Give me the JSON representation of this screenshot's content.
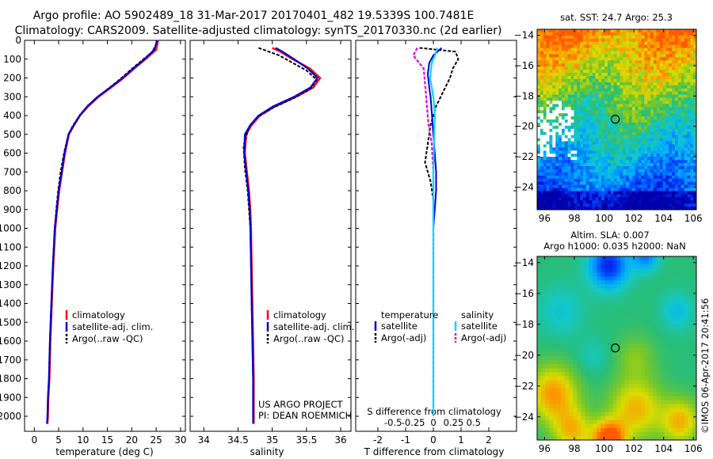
{
  "header": {
    "line1": "Argo profile: AO 5902489_18 31-Mar-2017 20170401_482 19.5339S 100.7481E",
    "line2": "Climatology: CARS2009. Satellite-adjusted climatology: synTS_20170330.nc (2d earlier)"
  },
  "legend": {
    "climatology": "climatology",
    "satellite_adj": "satellite-adj. clim.",
    "argo_raw": "Argo(..raw -QC)",
    "temperature_head": "temperature",
    "salinity_head": "salinity",
    "satellite": "satellite",
    "argo_adj": "Argo(-adj)"
  },
  "credits": {
    "project": "US ARGO PROJECT",
    "pi": "PI: DEAN ROEMMICH",
    "stamp": "©IMOS 06-Apr-2017 20:41:56"
  },
  "colors": {
    "climatology": "#ff0000",
    "satellite": "#0000cc",
    "argo": "#000000",
    "sat_salinity": "#00d8ff",
    "argo_salinity": "#e000e0"
  },
  "chart_data": [
    {
      "type": "line",
      "id": "temperature",
      "xlabel": "temperature (deg C)",
      "ylabel": "",
      "xlim": [
        -2,
        31
      ],
      "ylim": [
        2080,
        0
      ],
      "xticks": [
        0,
        5,
        10,
        15,
        20,
        25,
        30
      ],
      "yticks": [
        0,
        100,
        200,
        300,
        400,
        500,
        600,
        700,
        800,
        900,
        1000,
        1100,
        1200,
        1300,
        1400,
        1500,
        1600,
        1700,
        1800,
        1900,
        2000
      ],
      "series": [
        {
          "name": "climatology",
          "x": [
            25.4,
            25.0,
            22.8,
            20.5,
            18.3,
            15.8,
            13.2,
            11.1,
            9.4,
            8.2,
            7.1,
            6.3,
            5.7,
            5.1,
            4.7,
            4.3,
            3.9,
            3.6,
            3.3,
            3.1,
            2.9,
            2.8,
            2.7
          ],
          "y": [
            0,
            50,
            100,
            150,
            200,
            250,
            300,
            350,
            400,
            450,
            500,
            600,
            700,
            800,
            900,
            1000,
            1200,
            1400,
            1600,
            1800,
            1900,
            2000,
            2040
          ]
        },
        {
          "name": "satellite-adj. clim.",
          "x": [
            25.2,
            24.6,
            22.6,
            20.3,
            18.1,
            15.6,
            13.0,
            10.9,
            9.3,
            8.1,
            7.0,
            6.2,
            5.6,
            5.0,
            4.6,
            4.2,
            3.8,
            3.5,
            3.2,
            3.0,
            2.8,
            2.7,
            2.6
          ],
          "y": [
            0,
            50,
            100,
            150,
            200,
            250,
            300,
            350,
            400,
            450,
            500,
            600,
            700,
            800,
            900,
            1000,
            1200,
            1400,
            1600,
            1800,
            1900,
            2000,
            2040
          ]
        },
        {
          "name": "Argo(..raw -QC)",
          "x": [
            24.6,
            24.3,
            22.4,
            20.1,
            17.9,
            15.5,
            13.0,
            10.9,
            9.3,
            8.0,
            7.0,
            6.1,
            5.4,
            4.9,
            4.5,
            4.2,
            3.8,
            3.5,
            3.2,
            3.0,
            2.8,
            2.7
          ],
          "y": [
            40,
            60,
            100,
            150,
            200,
            250,
            300,
            350,
            400,
            450,
            500,
            600,
            700,
            800,
            900,
            1000,
            1200,
            1400,
            1600,
            1800,
            1900,
            2000
          ]
        }
      ]
    },
    {
      "type": "line",
      "id": "salinity",
      "xlabel": "salinity",
      "ylabel": "",
      "xlim": [
        33.8,
        36.15
      ],
      "ylim": [
        2080,
        0
      ],
      "xticks": [
        34,
        34.5,
        35,
        35.5,
        36
      ],
      "series": [
        {
          "name": "climatology",
          "x": [
            35.0,
            35.12,
            35.3,
            35.55,
            35.7,
            35.6,
            35.35,
            35.05,
            34.82,
            34.7,
            34.62,
            34.6,
            34.63,
            34.66,
            34.68,
            34.69,
            34.7,
            34.71,
            34.72,
            34.73,
            34.73,
            34.73
          ],
          "y": [
            40,
            60,
            100,
            150,
            200,
            250,
            300,
            350,
            400,
            450,
            500,
            600,
            700,
            800,
            900,
            1000,
            1200,
            1400,
            1600,
            1800,
            2000,
            2040
          ]
        },
        {
          "name": "satellite-adj. clim.",
          "x": [
            35.05,
            35.15,
            35.32,
            35.52,
            35.66,
            35.56,
            35.32,
            35.02,
            34.8,
            34.68,
            34.6,
            34.59,
            34.62,
            34.65,
            34.67,
            34.68,
            34.69,
            34.7,
            34.71,
            34.72,
            34.72,
            34.72
          ],
          "y": [
            40,
            60,
            100,
            150,
            200,
            250,
            300,
            350,
            400,
            450,
            500,
            600,
            700,
            800,
            900,
            1000,
            1200,
            1400,
            1600,
            1800,
            2000,
            2040
          ]
        },
        {
          "name": "Argo(..raw -QC)",
          "x": [
            34.8,
            34.95,
            35.1,
            35.3,
            35.5,
            35.65,
            35.55,
            35.3,
            35.0,
            34.78,
            34.66,
            34.58,
            34.6,
            34.64,
            34.66,
            34.68,
            34.69,
            34.7,
            34.71,
            34.72,
            34.72
          ],
          "y": [
            40,
            60,
            80,
            120,
            160,
            210,
            260,
            310,
            360,
            410,
            460,
            560,
            680,
            800,
            900,
            1000,
            1200,
            1400,
            1600,
            1800,
            2000
          ]
        }
      ]
    },
    {
      "type": "line",
      "id": "differences",
      "xlabel": "T difference from climatology",
      "top_axis_label": "S difference from climatology",
      "xlim": [
        -2.8,
        3.0
      ],
      "ylim": [
        2080,
        0
      ],
      "xticks": [
        -2,
        -1,
        0,
        1,
        2
      ],
      "top_ticks": [
        "-0.5",
        "-0.25",
        "0",
        "0.25",
        "0.5"
      ],
      "top_tick_values": [
        -0.5,
        -0.25,
        0,
        0.25,
        0.5
      ],
      "series": [
        {
          "name": "temperature satellite",
          "x": [
            0.3,
            0.0,
            -0.15,
            -0.2,
            -0.15,
            -0.1,
            -0.05,
            0.0,
            0.05,
            0.1,
            0.1,
            0.05,
            0.0,
            0.0,
            0.0,
            0.0
          ],
          "y": [
            40,
            80,
            120,
            180,
            250,
            300,
            400,
            500,
            600,
            700,
            800,
            900,
            1000,
            1400,
            1800,
            2000
          ]
        },
        {
          "name": "temperature Argo(-adj)",
          "x": [
            -0.5,
            0.8,
            0.9,
            0.7,
            0.6,
            0.4,
            0.1,
            -0.1,
            -0.2,
            -0.3,
            -0.1,
            0.0,
            0.0,
            0.0,
            0.0
          ],
          "y": [
            40,
            60,
            100,
            150,
            200,
            260,
            350,
            450,
            550,
            650,
            750,
            850,
            1000,
            1500,
            2000
          ]
        },
        {
          "name": "salinity satellite",
          "x": [
            0.05,
            0.02,
            -0.02,
            -0.04,
            0.0,
            0.02,
            0.01,
            0.0,
            0.0,
            0.0,
            0.0,
            0.0
          ],
          "y": [
            40,
            80,
            120,
            200,
            300,
            400,
            500,
            700,
            900,
            1200,
            1600,
            2000
          ]
        },
        {
          "name": "salinity Argo(-adj)",
          "x": [
            -0.2,
            -0.25,
            -0.12,
            -0.1,
            -0.08,
            -0.06,
            -0.02,
            0.0,
            0.0,
            0.0,
            0.0
          ],
          "y": [
            40,
            80,
            150,
            250,
            350,
            450,
            550,
            700,
            900,
            1300,
            2000
          ]
        }
      ]
    },
    {
      "type": "heatmap",
      "id": "sst_map",
      "title": "sat. SST: 24.7  Argo: 25.3",
      "xlim": [
        95.5,
        106.2
      ],
      "ylim": [
        -25.5,
        -13.6
      ],
      "xticks": [
        96,
        98,
        100,
        102,
        104,
        106
      ],
      "yticks": [
        -14,
        -16,
        -18,
        -20,
        -22,
        -24
      ],
      "marker": {
        "lon": 100.75,
        "lat": -19.53
      }
    },
    {
      "type": "heatmap",
      "id": "sla_map",
      "title_line1": "Altim. SLA: 0.007",
      "title_line2": "Argo h1000: 0.035 h2000: NaN",
      "xlim": [
        95.5,
        106.2
      ],
      "ylim": [
        -25.5,
        -13.6
      ],
      "xticks": [
        96,
        98,
        100,
        102,
        104,
        106
      ],
      "yticks": [
        -14,
        -16,
        -18,
        -20,
        -22,
        -24
      ],
      "marker": {
        "lon": 100.75,
        "lat": -19.53
      }
    }
  ]
}
